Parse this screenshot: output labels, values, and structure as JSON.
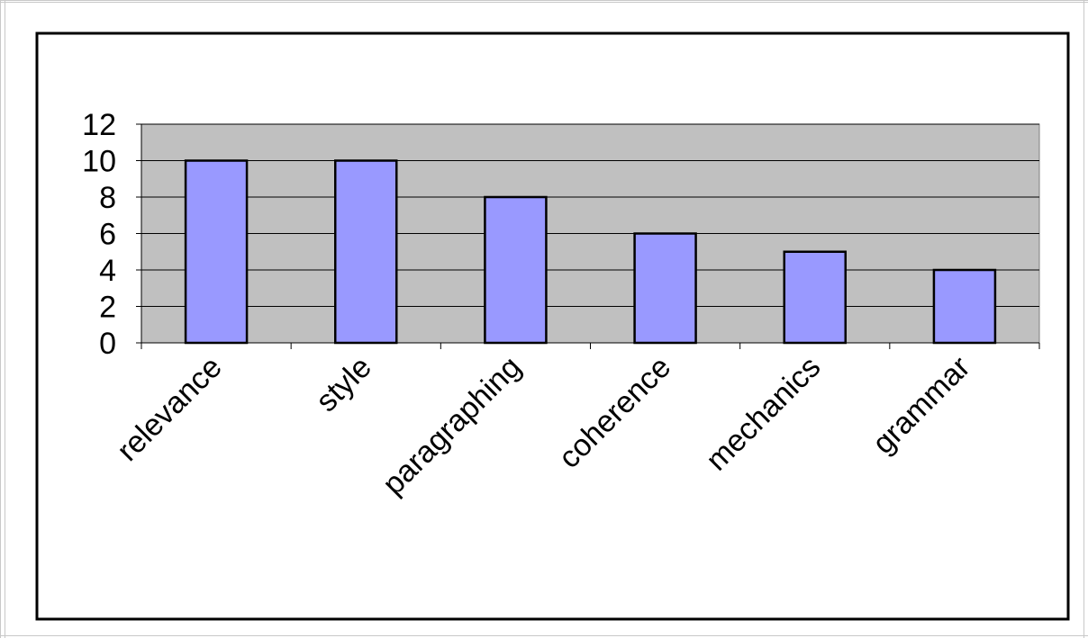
{
  "chart_data": {
    "type": "bar",
    "title": "",
    "xlabel": "",
    "ylabel": "",
    "categories": [
      "relevance",
      "style",
      "paragraphing",
      "coherence",
      "mechanics",
      "grammar"
    ],
    "values": [
      10,
      10,
      8,
      6,
      5,
      4
    ],
    "ylim": [
      0,
      12
    ],
    "yticks": [
      "0",
      "2",
      "4",
      "6",
      "8",
      "10",
      "12"
    ],
    "grid": true,
    "legend": "none"
  },
  "colors": {
    "bar_fill": "#9999ff",
    "plot_background": "#c0c0c0",
    "border": "#000000"
  }
}
